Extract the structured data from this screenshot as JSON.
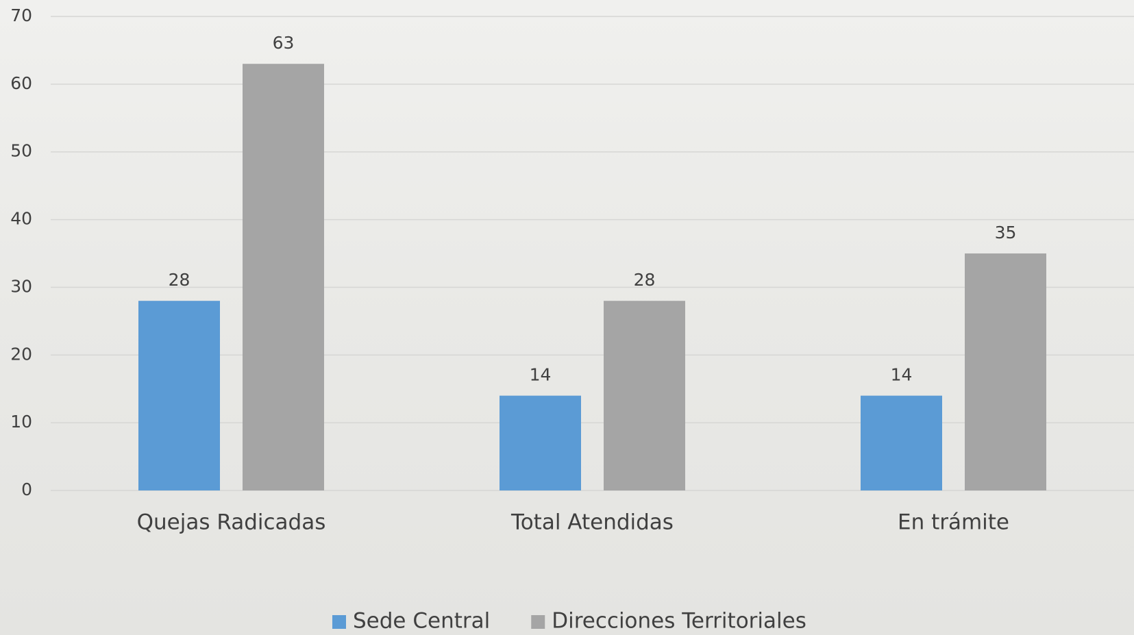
{
  "chart_data": {
    "type": "bar",
    "categories": [
      "Quejas Radicadas",
      "Total Atendidas",
      "En trámite"
    ],
    "series": [
      {
        "name": "Sede Central",
        "color": "#5b9bd5",
        "values": [
          28,
          14,
          14
        ]
      },
      {
        "name": "Direcciones Territoriales",
        "color": "#a5a5a5",
        "values": [
          63,
          28,
          35
        ]
      }
    ],
    "ylim": [
      0,
      70
    ],
    "yticks": [
      0,
      10,
      20,
      30,
      40,
      50,
      60,
      70
    ],
    "grid": true,
    "legend": "bottom"
  }
}
